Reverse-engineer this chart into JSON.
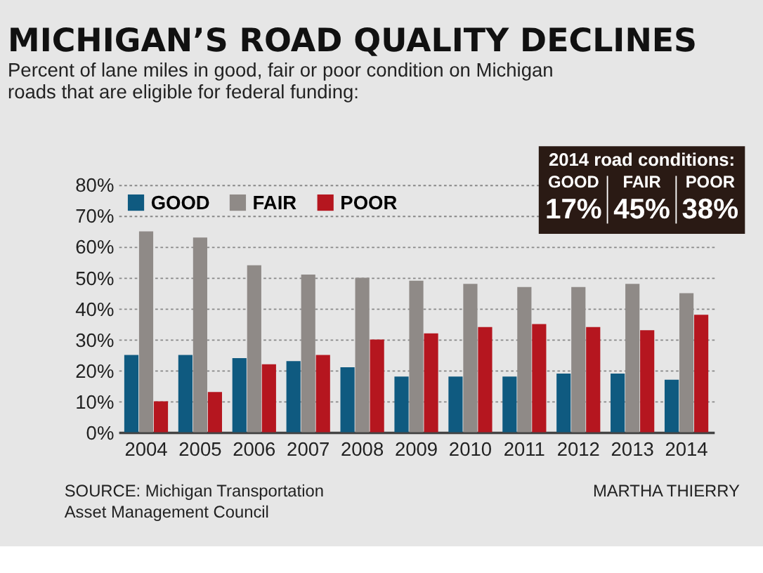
{
  "chart_data": {
    "type": "bar",
    "title": "MICHIGAN’S ROAD QUALITY DECLINES",
    "subtitle": [
      "Percent of lane miles in good, fair or poor condition on Michigan",
      "roads that are eligible for federal funding:"
    ],
    "categories": [
      "2004",
      "2005",
      "2006",
      "2007",
      "2008",
      "2009",
      "2010",
      "2011",
      "2012",
      "2013",
      "2014"
    ],
    "series": [
      {
        "name": "GOOD",
        "color": "#0f5a80",
        "values": [
          25,
          25,
          24,
          23,
          21,
          18,
          18,
          18,
          19,
          19,
          17
        ]
      },
      {
        "name": "FAIR",
        "color": "#8f8a87",
        "values": [
          65,
          63,
          54,
          51,
          50,
          49,
          48,
          47,
          47,
          48,
          45
        ]
      },
      {
        "name": "POOR",
        "color": "#b5161f",
        "values": [
          10,
          13,
          22,
          25,
          30,
          32,
          34,
          35,
          34,
          33,
          38
        ]
      }
    ],
    "ylim": [
      0,
      80
    ],
    "yticks": [
      {
        "value": 0,
        "label": "0%"
      },
      {
        "value": 10,
        "label": "10%"
      },
      {
        "value": 20,
        "label": "20%"
      },
      {
        "value": 30,
        "label": "30%"
      },
      {
        "value": 40,
        "label": "40%"
      },
      {
        "value": 50,
        "label": "50%"
      },
      {
        "value": 60,
        "label": "60%"
      },
      {
        "value": 70,
        "label": "70%"
      },
      {
        "value": 80,
        "label": "80%"
      }
    ],
    "grid": "y",
    "legend": "top left",
    "annotations": [
      "2014 road conditions:",
      "GOOD",
      "17%",
      "FAIR",
      "45%",
      "POOR",
      "38%",
      "SOURCE: Michigan Transportation",
      "Asset Management Council",
      "MARTHA THIERRY"
    ]
  }
}
